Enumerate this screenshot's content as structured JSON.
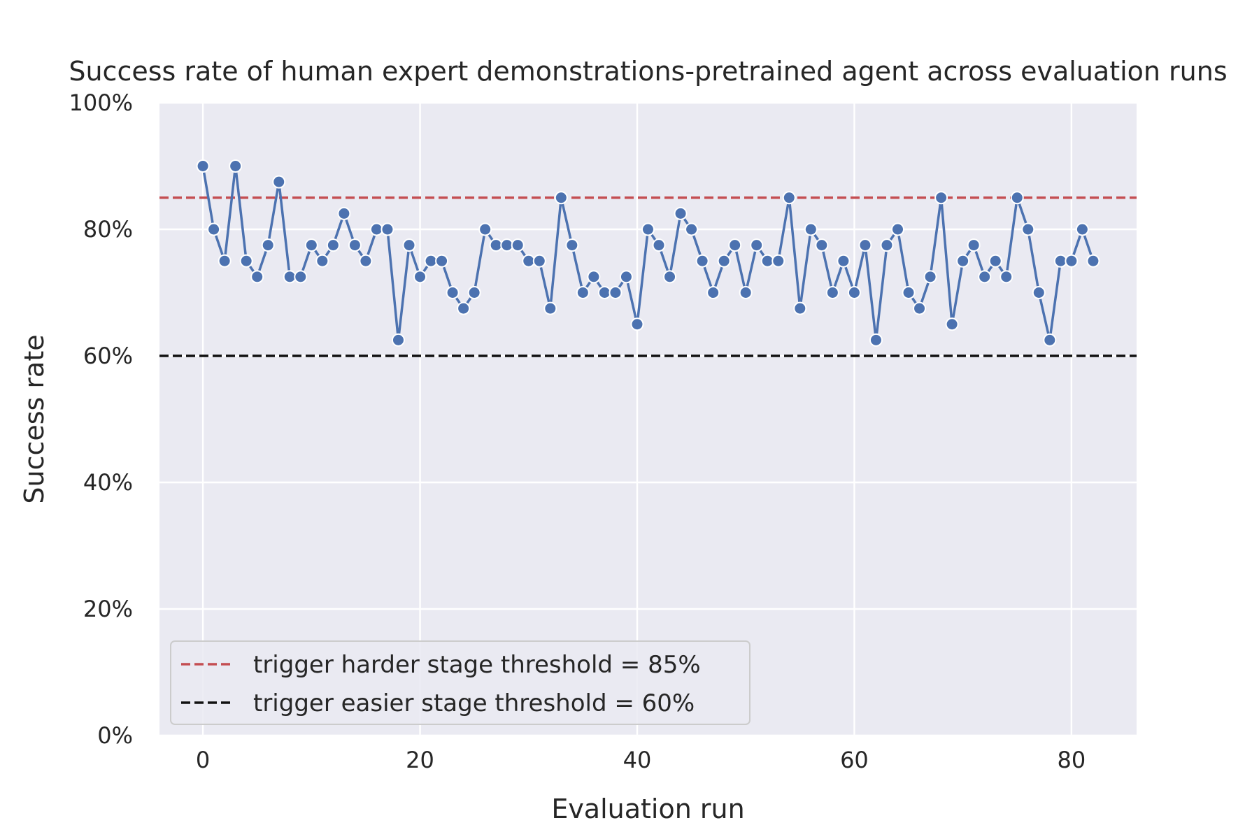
{
  "chart_data": {
    "type": "line",
    "title": "Success rate of human expert demonstrations-pretrained agent across evaluation runs",
    "xlabel": "Evaluation run",
    "ylabel": "Success rate",
    "xlim": [
      -4,
      86
    ],
    "ylim": [
      0,
      1
    ],
    "xticks": [
      0,
      20,
      40,
      60,
      80
    ],
    "xtick_labels": [
      "0",
      "20",
      "40",
      "60",
      "80"
    ],
    "yticks": [
      0,
      0.2,
      0.4,
      0.6,
      0.8,
      1.0
    ],
    "ytick_labels": [
      "0%",
      "20%",
      "40%",
      "60%",
      "80%",
      "100%"
    ],
    "grid": true,
    "legend_position": "lower-left",
    "colors": {
      "series": "#4c72b0",
      "harder_threshold": "#c44e52",
      "easier_threshold": "#111111",
      "plot_background": "#eaeaf2",
      "grid": "#ffffff"
    },
    "series": [
      {
        "x": [
          0,
          1,
          2,
          3,
          4,
          5,
          6,
          7,
          8,
          9,
          10,
          11,
          12,
          13,
          14,
          15,
          16,
          17,
          18,
          19,
          20,
          21,
          22,
          23,
          24,
          25,
          26,
          27,
          28,
          29,
          30,
          31,
          32,
          33,
          34,
          35,
          36,
          37,
          38,
          39,
          40,
          41,
          42,
          43,
          44,
          45,
          46,
          47,
          48,
          49,
          50,
          51,
          52,
          53,
          54,
          55,
          56,
          57,
          58,
          59,
          60,
          61,
          62,
          63,
          64,
          65,
          66,
          67,
          68,
          69,
          70,
          71,
          72,
          73,
          74,
          75,
          76,
          77,
          78,
          79,
          80,
          81,
          82
        ],
        "values": [
          0.9,
          0.8,
          0.75,
          0.9,
          0.75,
          0.725,
          0.775,
          0.875,
          0.725,
          0.725,
          0.775,
          0.75,
          0.775,
          0.825,
          0.775,
          0.75,
          0.8,
          0.8,
          0.625,
          0.775,
          0.725,
          0.75,
          0.75,
          0.7,
          0.675,
          0.7,
          0.8,
          0.775,
          0.775,
          0.775,
          0.75,
          0.75,
          0.675,
          0.85,
          0.775,
          0.7,
          0.725,
          0.7,
          0.7,
          0.725,
          0.65,
          0.8,
          0.775,
          0.725,
          0.825,
          0.8,
          0.75,
          0.7,
          0.75,
          0.775,
          0.7,
          0.775,
          0.75,
          0.75,
          0.85,
          0.675,
          0.8,
          0.775,
          0.7,
          0.75,
          0.7,
          0.775,
          0.625,
          0.775,
          0.8,
          0.7,
          0.675,
          0.725,
          0.85,
          0.65,
          0.75,
          0.775,
          0.725,
          0.75,
          0.725,
          0.85,
          0.8,
          0.7,
          0.625,
          0.75,
          0.75,
          0.8,
          0.75
        ]
      }
    ],
    "thresholds": [
      {
        "name": "trigger harder stage threshold = 85%",
        "value": 0.85,
        "color": "#c44e52"
      },
      {
        "name": "trigger easier stage threshold = 60%",
        "value": 0.6,
        "color": "#111111"
      }
    ]
  }
}
